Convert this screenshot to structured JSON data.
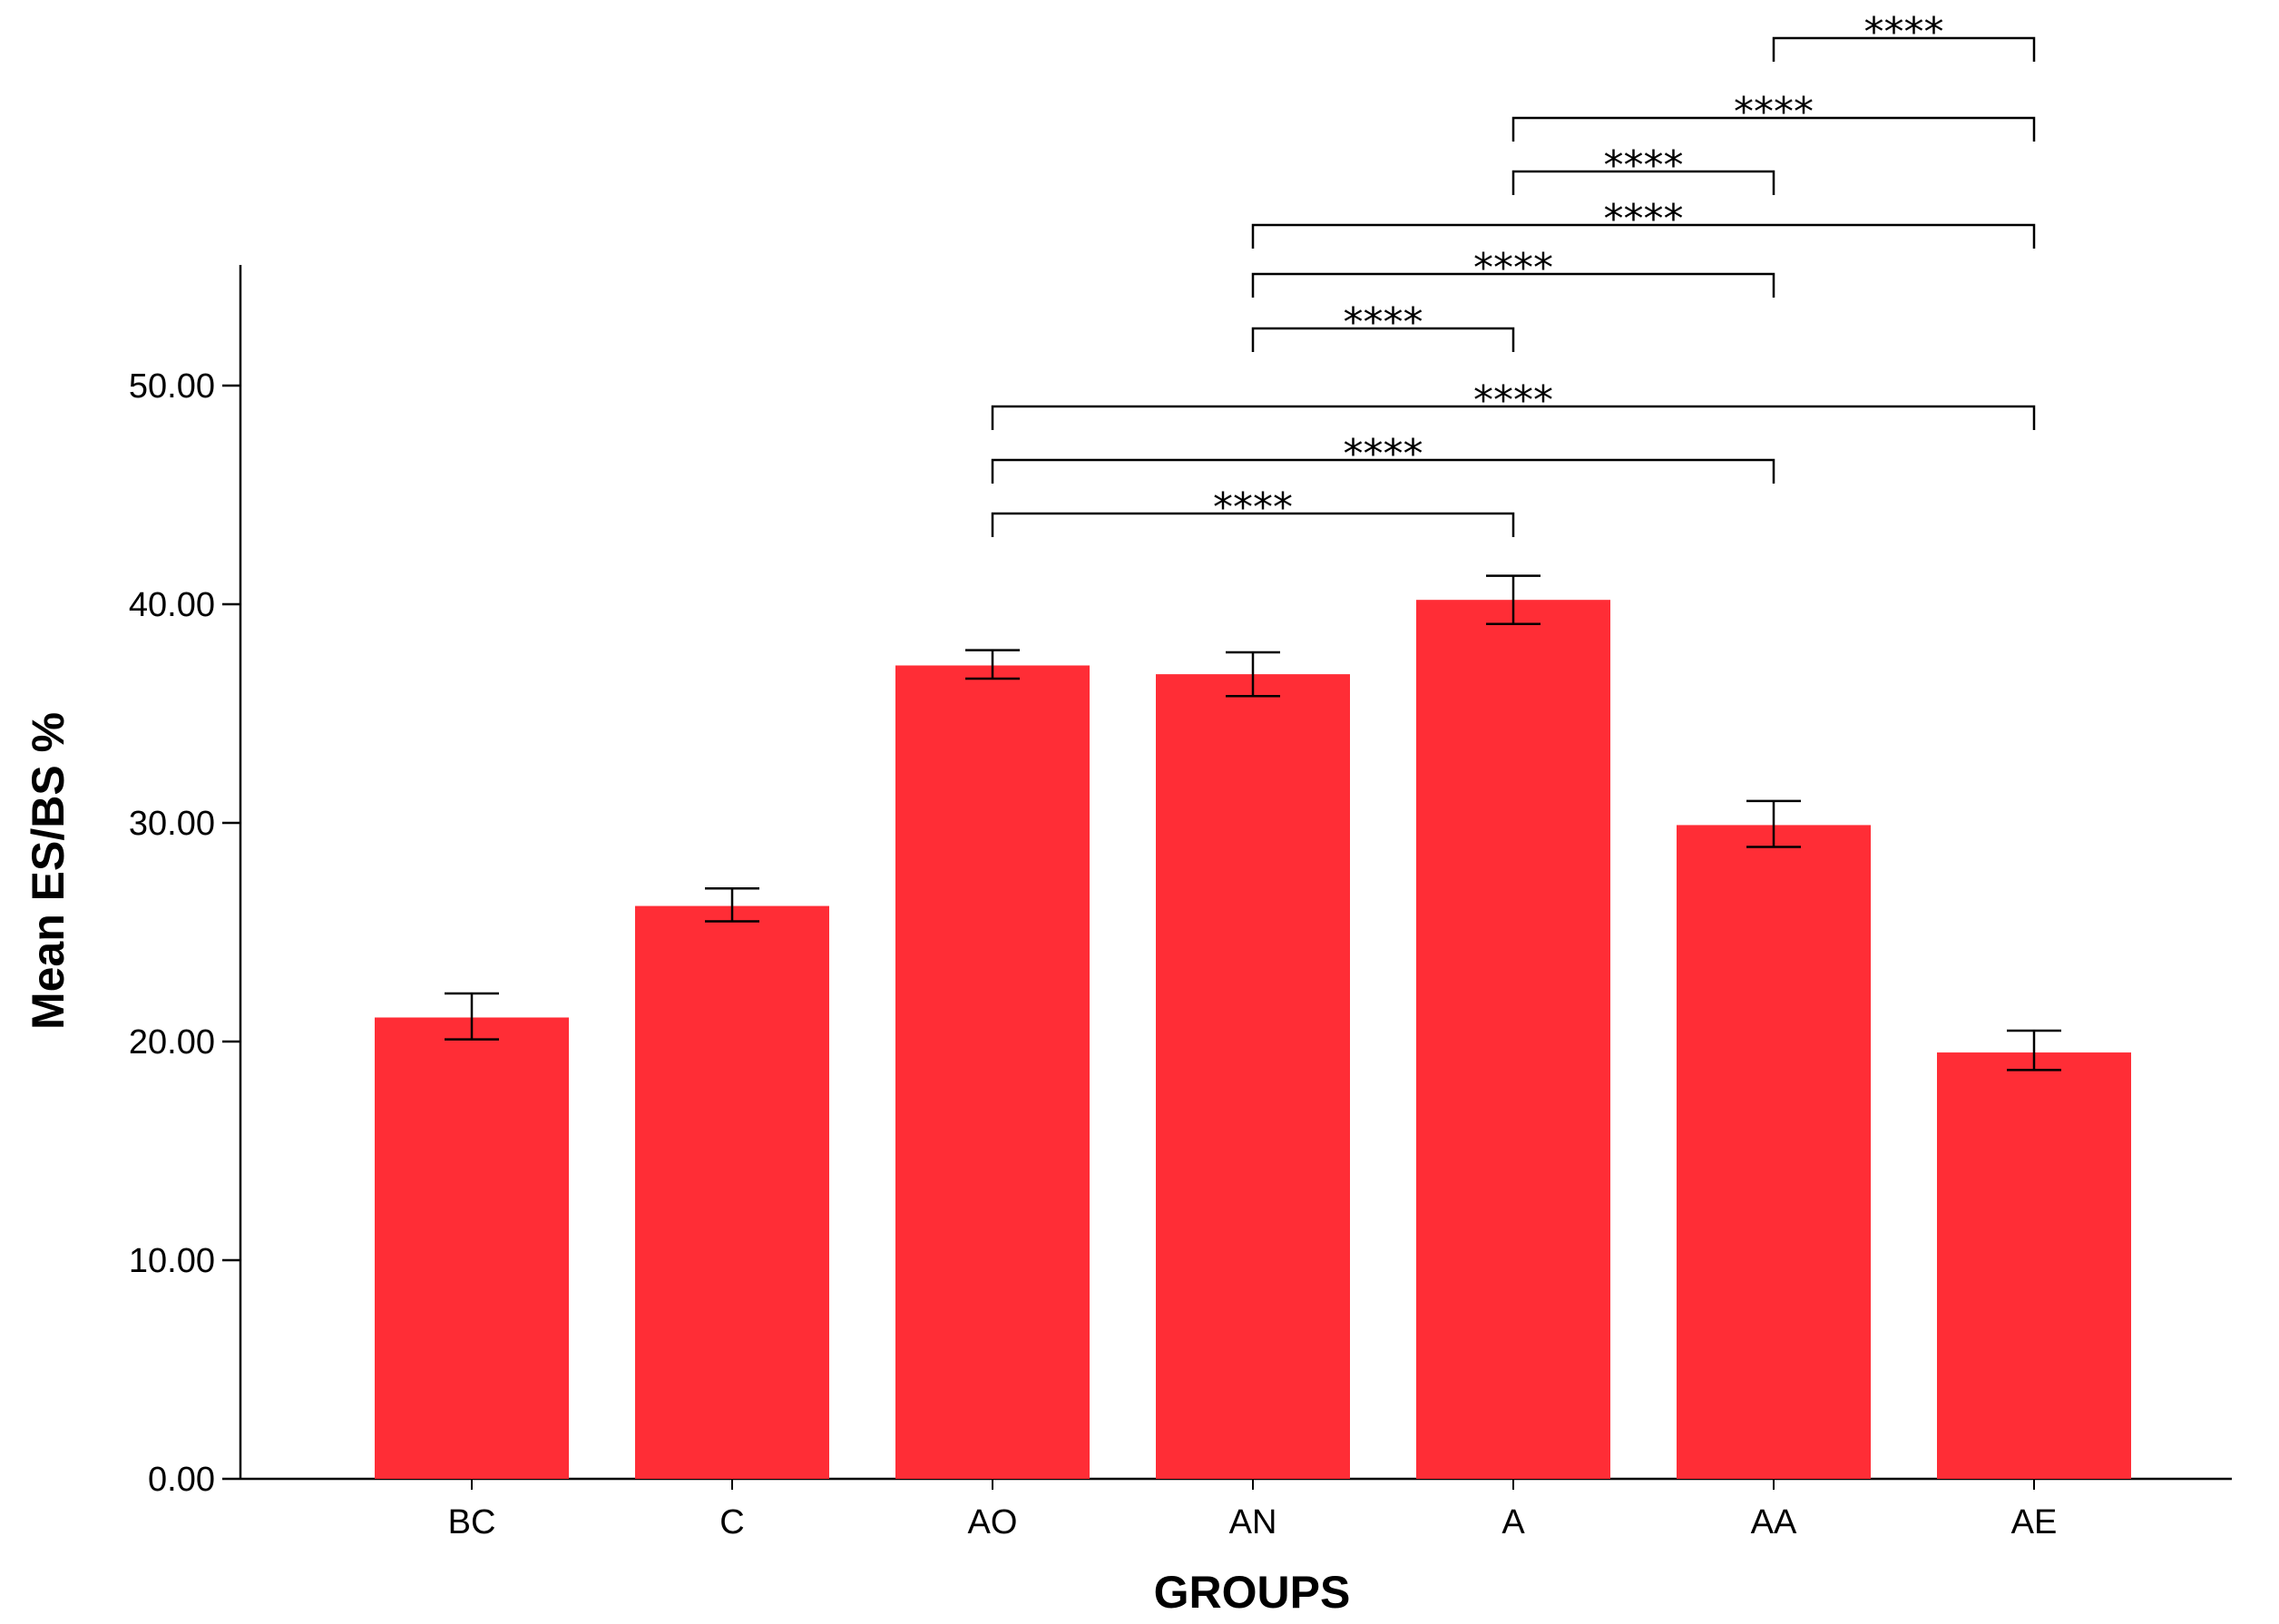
{
  "chart_data": {
    "type": "bar",
    "categories": [
      "BC",
      "C",
      "AO",
      "AN",
      "A",
      "AA",
      "AE"
    ],
    "values": [
      21.1,
      26.2,
      37.2,
      36.8,
      40.2,
      29.9,
      19.5
    ],
    "error_low": [
      20.1,
      25.5,
      36.6,
      35.8,
      39.1,
      28.9,
      18.7
    ],
    "error_high": [
      22.2,
      27.0,
      37.9,
      37.8,
      41.3,
      31.0,
      20.5
    ],
    "xlabel": "GROUPS",
    "ylabel": "Mean ES/BS %",
    "ylim": [
      0,
      50
    ],
    "yticks": [
      0,
      10,
      20,
      30,
      40,
      50
    ],
    "ytick_labels": [
      "0.00",
      "10.00",
      "20.00",
      "30.00",
      "40.00",
      "50.00"
    ],
    "grid": false,
    "bar_color": "#ff2d36",
    "significance": [
      {
        "from": "AO",
        "to": "A",
        "label": "****"
      },
      {
        "from": "AO",
        "to": "AA",
        "label": "****"
      },
      {
        "from": "AO",
        "to": "AE",
        "label": "****"
      },
      {
        "from": "AN",
        "to": "A",
        "label": "****"
      },
      {
        "from": "AN",
        "to": "AA",
        "label": "****"
      },
      {
        "from": "AN",
        "to": "AE",
        "label": "****"
      },
      {
        "from": "A",
        "to": "AA",
        "label": "****"
      },
      {
        "from": "A",
        "to": "AE",
        "label": "****"
      },
      {
        "from": "AA",
        "to": "AE",
        "label": "****"
      }
    ]
  }
}
